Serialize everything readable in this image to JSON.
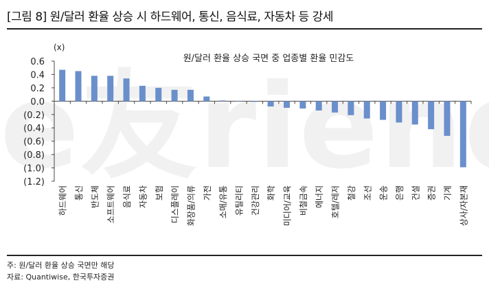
{
  "figure": {
    "title": "[그림 8] 원/달러 환율 상승 시 하드웨어, 통신, 음식료, 자동차 등 강세",
    "watermark": "e友riend"
  },
  "notes": {
    "note": "주: 원/달러 환율 상승 국면만 해당",
    "source": "자료: Quantiwise, 한국투자증권"
  },
  "colors": {
    "bar": "#6a8fcb",
    "axis": "#444444",
    "rule": "#222222"
  },
  "chart_data": {
    "type": "bar",
    "title": "원/달러 환율 상승 국면 중 업종별 환율 민감도",
    "unit_label": "(x)",
    "xlabel": "",
    "ylabel": "",
    "ylim": [
      -1.2,
      0.6
    ],
    "yticks": [
      0.6,
      0.4,
      0.2,
      0.0,
      -0.2,
      -0.4,
      -0.6,
      -0.8,
      -1.0,
      -1.2
    ],
    "ytick_labels": [
      "0.6",
      "0.4",
      "0.2",
      "0.0",
      "(0.2)",
      "(0.4)",
      "(0.6)",
      "(0.8)",
      "(1.0)",
      "(1.2)"
    ],
    "grid": false,
    "legend": null,
    "categories": [
      "하드웨어",
      "통신",
      "반도체",
      "소프트웨어",
      "음식료",
      "자동차",
      "보험",
      "디스플레이",
      "화장품/의류",
      "가전",
      "소매/유통",
      "유틸리티",
      "건강관리",
      "화학",
      "미디어/교육",
      "비철금속",
      "에너지",
      "호텔/레저",
      "철강",
      "조선",
      "운송",
      "은행",
      "건설",
      "증권",
      "기계",
      "상사/자본재"
    ],
    "values": [
      0.47,
      0.45,
      0.38,
      0.38,
      0.34,
      0.23,
      0.2,
      0.17,
      0.17,
      0.07,
      0.01,
      0.0,
      -0.01,
      -0.08,
      -0.1,
      -0.11,
      -0.14,
      -0.17,
      -0.21,
      -0.26,
      -0.28,
      -0.32,
      -0.35,
      -0.42,
      -0.52,
      -0.99
    ]
  }
}
